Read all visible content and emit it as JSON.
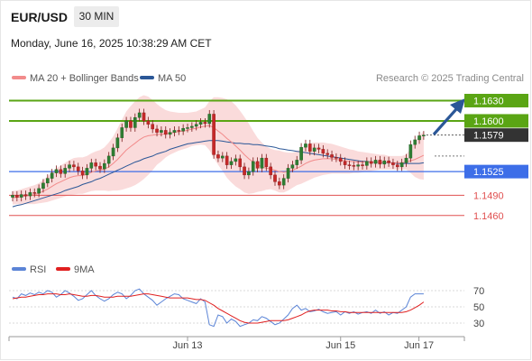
{
  "header": {
    "pair": "EUR/USD",
    "timeframe": "30 MIN",
    "datetime": "Monday, June 16, 2025 10:38:29 AM CET"
  },
  "legend": [
    {
      "name": "MA 20 + Bollinger Bands",
      "color": "#f28b8b"
    },
    {
      "name": "MA 50",
      "color": "#2b5797"
    }
  ],
  "rsi_legend": [
    {
      "name": "RSI",
      "color": "#5b84d6"
    },
    {
      "name": "9MA",
      "color": "#e02020"
    }
  ],
  "copyright": "Research © 2025 Trading Central",
  "colors": {
    "resistance": "#5aa514",
    "pivot": "#3d6ee8",
    "support": "#e05050",
    "current": "#333333",
    "arrow": "#2b5797"
  },
  "chart_data": {
    "type": "candlestick",
    "y_range": [
      1.1405,
      1.1652
    ],
    "x_ticks": [
      "Jun 13",
      "Jun 15",
      "Jun 17"
    ],
    "levels": [
      {
        "label": "1.1630",
        "value": 1.163,
        "kind": "resistance"
      },
      {
        "label": "1.1600",
        "value": 1.16,
        "kind": "resistance"
      },
      {
        "label": "1.1579",
        "value": 1.1579,
        "kind": "current"
      },
      {
        "label": "1.1525",
        "value": 1.1525,
        "kind": "pivot"
      },
      {
        "label": "1.1490",
        "value": 1.149,
        "kind": "support"
      },
      {
        "label": "1.1460",
        "value": 1.146,
        "kind": "support"
      }
    ],
    "close": [
      1.149,
      1.1487,
      1.1491,
      1.1489,
      1.1494,
      1.1493,
      1.15,
      1.1508,
      1.1515,
      1.1523,
      1.1528,
      1.1522,
      1.153,
      1.1535,
      1.1532,
      1.1526,
      1.152,
      1.153,
      1.1538,
      1.1533,
      1.1529,
      1.1537,
      1.1548,
      1.156,
      1.1575,
      1.159,
      1.16,
      1.159,
      1.1605,
      1.1612,
      1.16,
      1.1595,
      1.1588,
      1.1583,
      1.1586,
      1.158,
      1.1583,
      1.1586,
      1.1585,
      1.1589,
      1.159,
      1.1592,
      1.1595,
      1.1598,
      1.1596,
      1.161,
      1.155,
      1.1545,
      1.1548,
      1.1535,
      1.154,
      1.1544,
      1.1532,
      1.152,
      1.1525,
      1.154,
      1.153,
      1.1545,
      1.1532,
      1.152,
      1.151,
      1.1505,
      1.1515,
      1.153,
      1.1535,
      1.1542,
      1.1561,
      1.1566,
      1.1555,
      1.156,
      1.1558,
      1.1552,
      1.155,
      1.1546,
      1.1545,
      1.154,
      1.1535,
      1.1534,
      1.1533,
      1.1535,
      1.1534,
      1.154,
      1.1537,
      1.1542,
      1.1536,
      1.1541,
      1.1538,
      1.1535,
      1.1532,
      1.1538,
      1.1545,
      1.1565,
      1.1572,
      1.1578,
      1.1579
    ],
    "ma20": [
      1.1486,
      1.1487,
      1.1488,
      1.1489,
      1.149,
      1.1491,
      1.1493,
      1.1496,
      1.1499,
      1.1503,
      1.1507,
      1.151,
      1.1513,
      1.1516,
      1.1518,
      1.1519,
      1.1519,
      1.1521,
      1.1524,
      1.1526,
      1.1527,
      1.1529,
      1.1532,
      1.1537,
      1.1543,
      1.155,
      1.1557,
      1.1562,
      1.1567,
      1.1572,
      1.1576,
      1.1578,
      1.1579,
      1.158,
      1.158,
      1.1581,
      1.1582,
      1.1583,
      1.1584,
      1.1585,
      1.1586,
      1.1588,
      1.1589,
      1.1591,
      1.1592,
      1.1593,
      1.159,
      1.1585,
      1.158,
      1.1574,
      1.1569,
      1.1563,
      1.1557,
      1.155,
      1.1544,
      1.1539,
      1.1535,
      1.1532,
      1.153,
      1.1529,
      1.1527,
      1.1525,
      1.1524,
      1.1525,
      1.1527,
      1.153,
      1.1533,
      1.1537,
      1.154,
      1.1542,
      1.1543,
      1.1544,
      1.1544,
      1.1544,
      1.1543,
      1.1542,
      1.1541,
      1.154,
      1.154,
      1.1539,
      1.1539,
      1.1539,
      1.1539,
      1.1539,
      1.1539,
      1.1539,
      1.1538,
      1.1538,
      1.1538,
      1.1538,
      1.1539,
      1.1541,
      1.1543,
      1.1546,
      1.1549
    ],
    "band_width": [
      0.001,
      0.001,
      0.0011,
      0.0012,
      0.0013,
      0.0014,
      0.0015,
      0.0017,
      0.0019,
      0.0021,
      0.0023,
      0.0024,
      0.0025,
      0.0026,
      0.0027,
      0.0027,
      0.0027,
      0.0027,
      0.0028,
      0.0029,
      0.003,
      0.0032,
      0.0036,
      0.004,
      0.0046,
      0.0052,
      0.0057,
      0.006,
      0.0062,
      0.0063,
      0.0062,
      0.0058,
      0.0052,
      0.0045,
      0.004,
      0.0035,
      0.0032,
      0.003,
      0.0028,
      0.0027,
      0.0026,
      0.0025,
      0.0025,
      0.0026,
      0.0028,
      0.0036,
      0.0045,
      0.005,
      0.0054,
      0.0058,
      0.006,
      0.006,
      0.0058,
      0.0056,
      0.0052,
      0.0046,
      0.004,
      0.0036,
      0.0032,
      0.003,
      0.003,
      0.0031,
      0.003,
      0.0028,
      0.0026,
      0.0025,
      0.0026,
      0.0027,
      0.0027,
      0.0026,
      0.0025,
      0.0024,
      0.0023,
      0.0022,
      0.0021,
      0.002,
      0.0019,
      0.0018,
      0.0017,
      0.0016,
      0.0015,
      0.0014,
      0.0013,
      0.0012,
      0.0011,
      0.0011,
      0.001,
      0.001,
      0.001,
      0.001,
      0.0011,
      0.0018,
      0.0026,
      0.0032,
      0.0036
    ],
    "ma50": [
      1.1473,
      1.1475,
      1.1476,
      1.1478,
      1.148,
      1.1482,
      1.1484,
      1.1486,
      1.1488,
      1.149,
      1.1492,
      1.1494,
      1.1497,
      1.1499,
      1.1501,
      1.1503,
      1.1506,
      1.1508,
      1.151,
      1.1513,
      1.1515,
      1.1518,
      1.1521,
      1.1524,
      1.1527,
      1.153,
      1.1533,
      1.1536,
      1.1539,
      1.1541,
      1.1544,
      1.1546,
      1.1548,
      1.1551,
      1.1553,
      1.1555,
      1.1558,
      1.156,
      1.1562,
      1.1564,
      1.1566,
      1.1567,
      1.1568,
      1.1569,
      1.157,
      1.1571,
      1.1571,
      1.1571,
      1.157,
      1.1569,
      1.1568,
      1.1567,
      1.1567,
      1.1566,
      1.1566,
      1.1565,
      1.1565,
      1.1564,
      1.1563,
      1.1562,
      1.1561,
      1.1559,
      1.1558,
      1.1557,
      1.1556,
      1.1555,
      1.1554,
      1.1553,
      1.1552,
      1.1551,
      1.155,
      1.1549,
      1.1548,
      1.1547,
      1.1546,
      1.1545,
      1.1544,
      1.1543,
      1.1542,
      1.1541,
      1.154,
      1.154,
      1.1539,
      1.1539,
      1.1539,
      1.1538,
      1.1538,
      1.1538,
      1.1537,
      1.1537,
      1.1537,
      1.1537,
      1.1537,
      1.1537,
      1.1538
    ],
    "rsi": {
      "y_ticks": [
        70,
        50,
        30
      ],
      "range": [
        20,
        80
      ],
      "rsi": [
        62,
        60,
        66,
        64,
        67,
        65,
        68,
        66,
        70,
        68,
        62,
        65,
        70,
        67,
        63,
        58,
        60,
        65,
        70,
        64,
        60,
        57,
        60,
        65,
        68,
        66,
        60,
        64,
        70,
        72,
        66,
        62,
        58,
        52,
        56,
        60,
        63,
        66,
        65,
        60,
        58,
        56,
        54,
        60,
        56,
        28,
        26,
        40,
        38,
        30,
        35,
        32,
        26,
        28,
        30,
        34,
        33,
        38,
        36,
        32,
        28,
        30,
        35,
        40,
        48,
        52,
        46,
        48,
        44,
        45,
        47,
        44,
        42,
        43,
        44,
        40,
        44,
        42,
        44,
        41,
        43,
        44,
        42,
        46,
        42,
        44,
        40,
        43,
        42,
        46,
        50,
        62,
        66,
        66,
        66
      ],
      "ma9": [
        60,
        61,
        62,
        62,
        63,
        64,
        65,
        65,
        66,
        66,
        66,
        65,
        65,
        66,
        65,
        64,
        63,
        63,
        64,
        64,
        63,
        62,
        62,
        62,
        63,
        63,
        63,
        63,
        64,
        65,
        66,
        66,
        65,
        64,
        63,
        62,
        61,
        61,
        61,
        61,
        61,
        60,
        59,
        59,
        58,
        55,
        52,
        48,
        45,
        42,
        39,
        36,
        33,
        31,
        30,
        30,
        30,
        31,
        32,
        33,
        33,
        33,
        33,
        34,
        36,
        38,
        40,
        43,
        45,
        46,
        46,
        46,
        46,
        45,
        45,
        44,
        44,
        43,
        43,
        43,
        43,
        43,
        43,
        43,
        43,
        43,
        43,
        43,
        43,
        43,
        44,
        46,
        49,
        52,
        56
      ]
    }
  }
}
